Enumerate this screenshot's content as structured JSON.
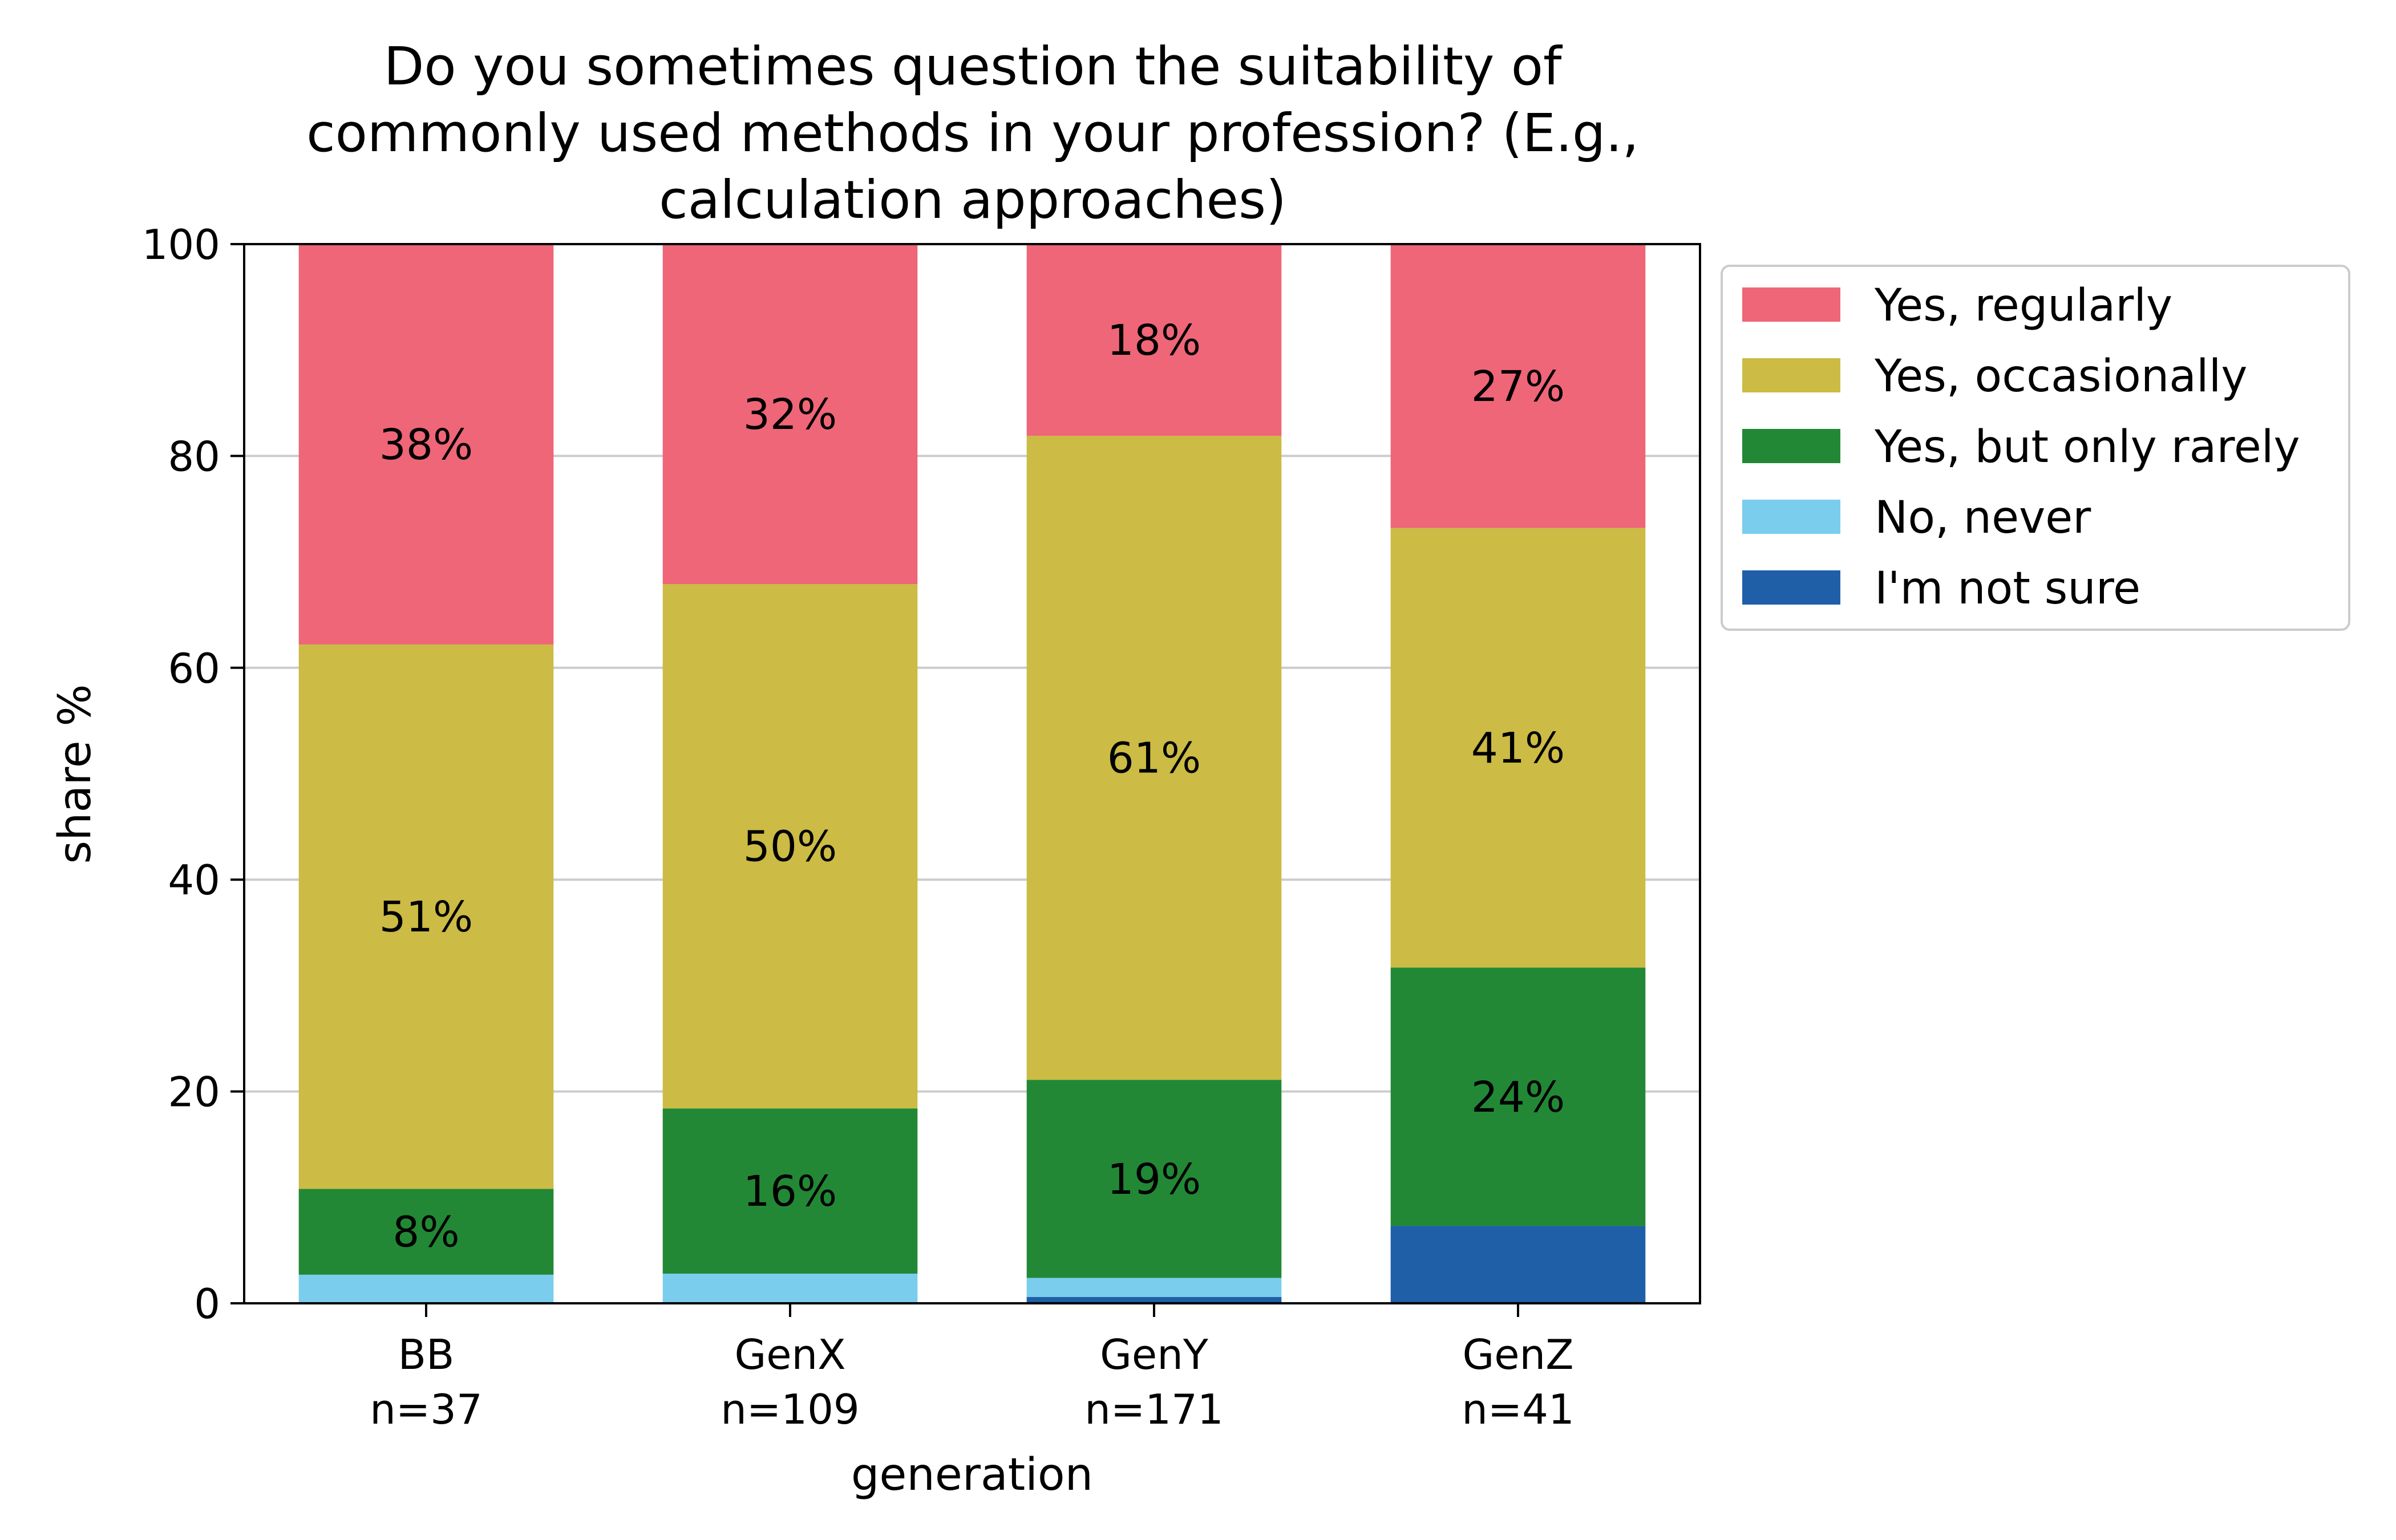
{
  "chart_data": {
    "type": "bar",
    "stacked": true,
    "title_lines": [
      "Do you sometimes question the suitability of",
      "commonly used methods in your profession? (E.g.,",
      "calculation approaches)"
    ],
    "xlabel": "generation",
    "ylabel": "share %",
    "ylim": [
      0,
      100
    ],
    "yticks": [
      0,
      20,
      40,
      60,
      80,
      100
    ],
    "grid": "horizontal",
    "legend_position": "outside-right",
    "categories": [
      {
        "label": "BB",
        "n": "n=37"
      },
      {
        "label": "GenX",
        "n": "n=109"
      },
      {
        "label": "GenY",
        "n": "n=171"
      },
      {
        "label": "GenZ",
        "n": "n=41"
      }
    ],
    "series": [
      {
        "name": "I'm not sure",
        "color": "#1f5fa8",
        "values": [
          0,
          0,
          0.6,
          7.3
        ],
        "labels": [
          "",
          "",
          "",
          ""
        ]
      },
      {
        "name": "No, never",
        "color": "#7acdec",
        "values": [
          2.7,
          2.8,
          1.8,
          0
        ],
        "labels": [
          "",
          "",
          "",
          ""
        ]
      },
      {
        "name": "Yes, but only rarely",
        "color": "#228835",
        "values": [
          8.1,
          15.6,
          18.7,
          24.4
        ],
        "labels": [
          "8%",
          "16%",
          "19%",
          "24%"
        ]
      },
      {
        "name": "Yes, occasionally",
        "color": "#ccbb44",
        "values": [
          51.4,
          49.5,
          60.8,
          41.5
        ],
        "labels": [
          "51%",
          "50%",
          "61%",
          "41%"
        ]
      },
      {
        "name": "Yes, regularly",
        "color": "#ee6677",
        "values": [
          37.8,
          32.1,
          18.1,
          26.8
        ],
        "labels": [
          "38%",
          "32%",
          "18%",
          "27%"
        ]
      }
    ],
    "legend_order": [
      "Yes, regularly",
      "Yes, occasionally",
      "Yes, but only rarely",
      "No, never",
      "I'm not sure"
    ]
  }
}
